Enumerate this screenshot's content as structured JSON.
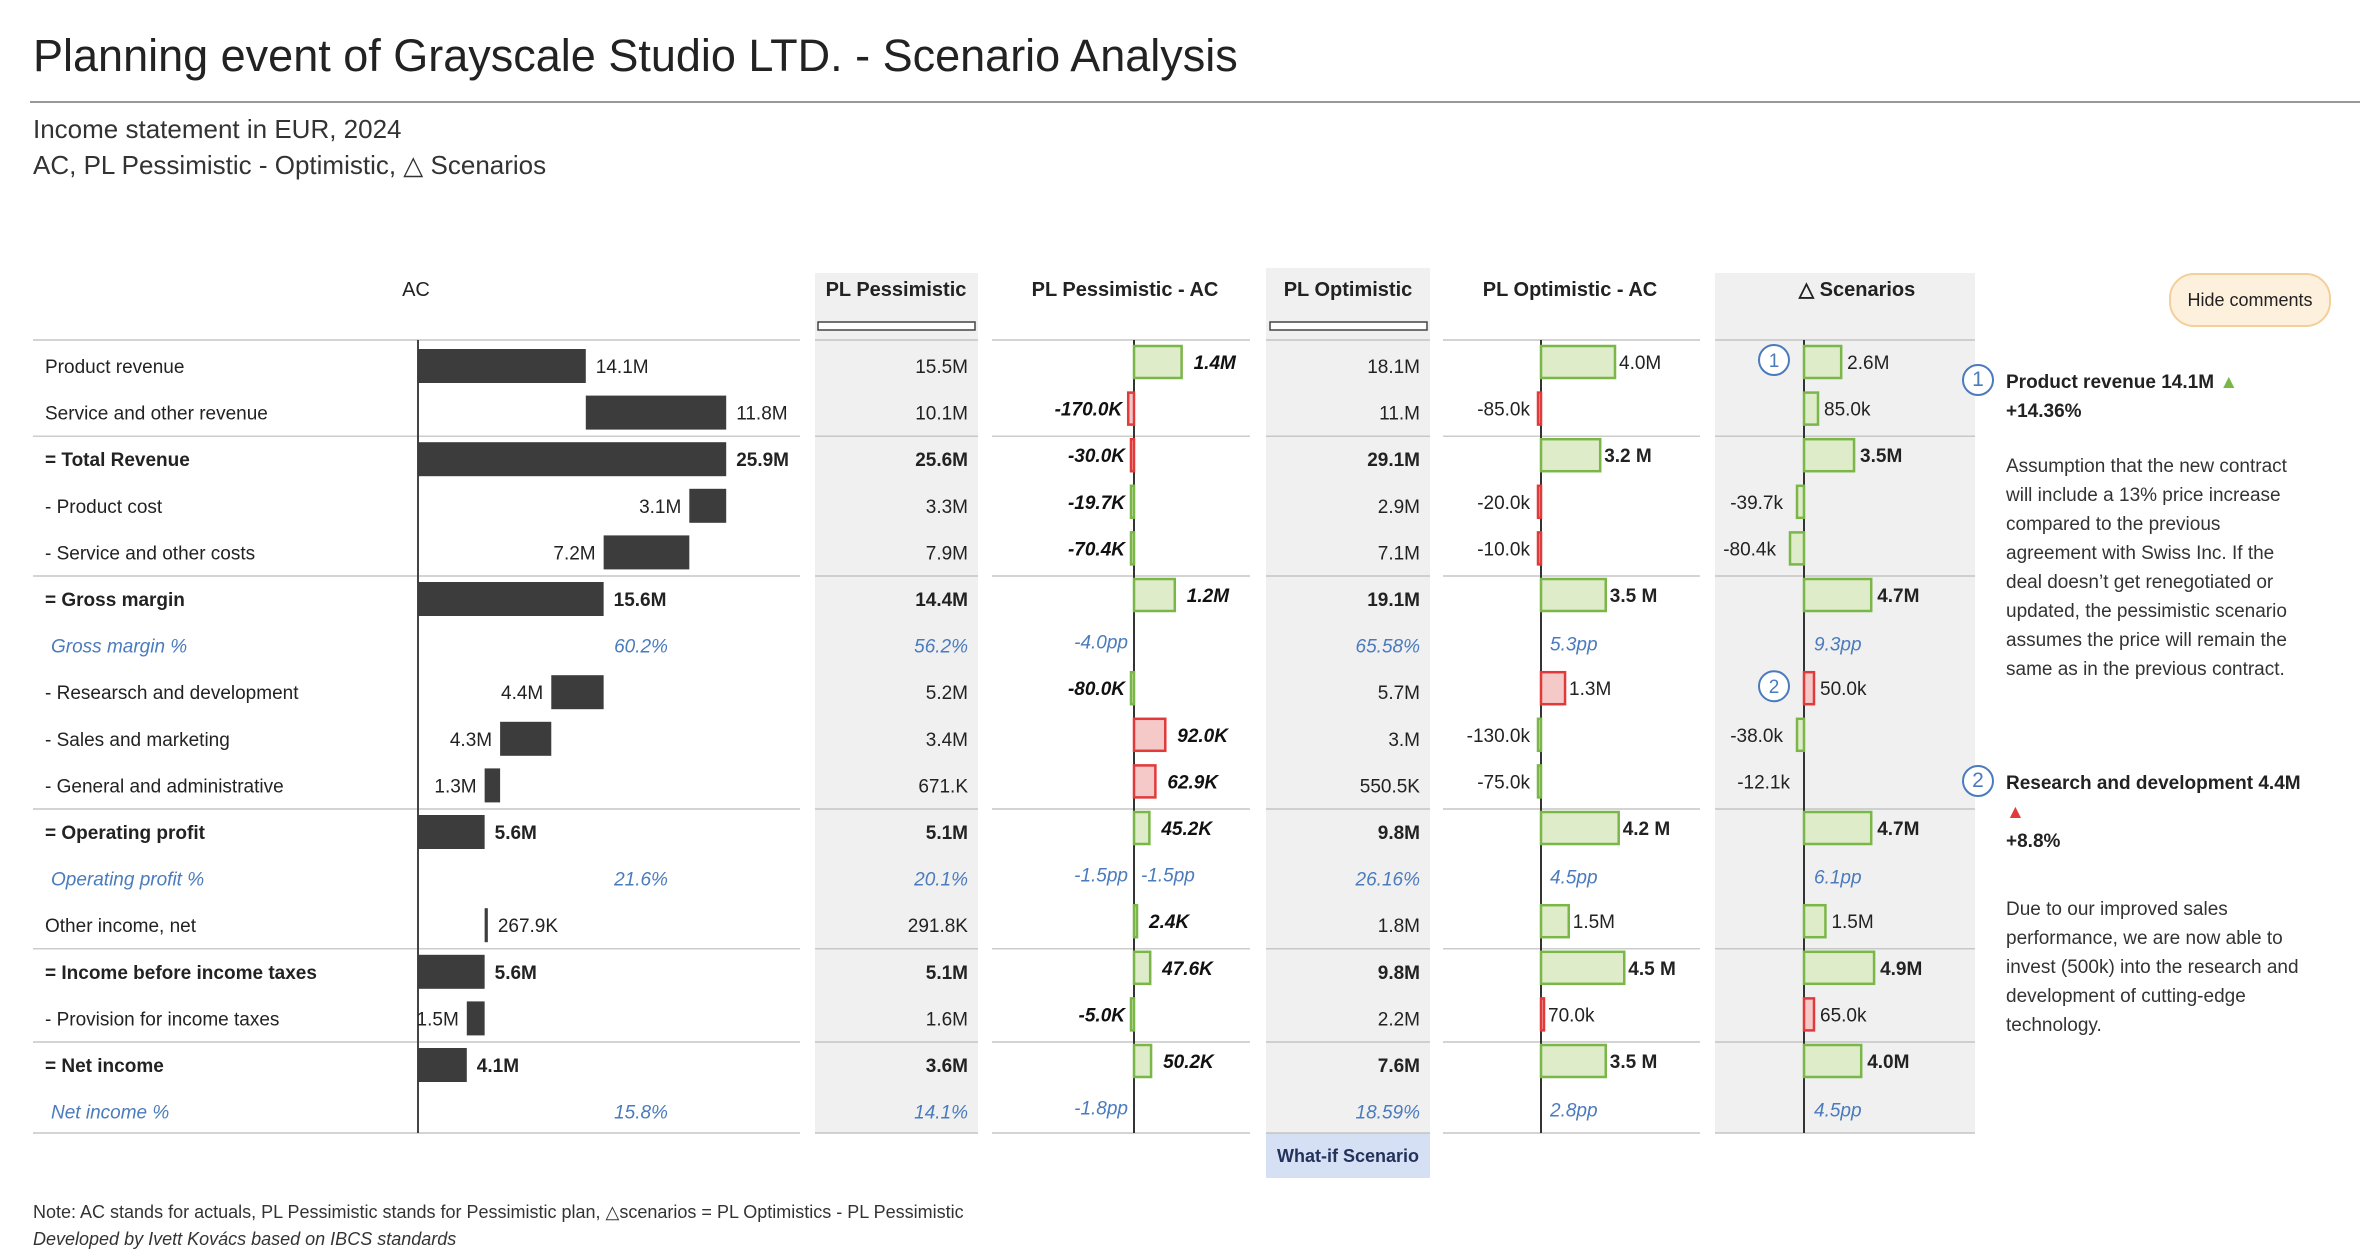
{
  "title": "Planning event of Grayscale Studio LTD. - Scenario Analysis",
  "subtitle1": "Income statement in EUR, 2024",
  "subtitle2": "AC, PL Pessimistic - Optimistic, △ Scenarios",
  "hide_comments_label": "Hide comments",
  "what_if_label": "What-if Scenario",
  "note": "Note: AC  stands for actuals, PL Pessimistic stands for Pessimistic plan, △scenarios = PL Optimistics - PL Pessimistic",
  "credit": "Developed by Ivett Kovács based on IBCS standards",
  "colors": {
    "actual_bar": "#3c3c3c",
    "positive": "#7ab648",
    "positive_fill": "#deecc9",
    "negative": "#e03a3a",
    "negative_fill": "#f6c9c9",
    "percent_text": "#4a7bbd",
    "plan_column_bg": "#f0f0f0",
    "what_if_bg": "#d6e0f5"
  },
  "comments": [
    {
      "marker": "1",
      "heading": "Product revenue  14.1M",
      "arrow": "▲",
      "arrow_color": "green",
      "change": "+14.36%",
      "text": "Assumption that the new contract will include a 13% price increase compared to the previous agreement with Swiss Inc. If the deal doesn’t get renegotiated or updated, the pessimistic scenario assumes the price will remain the same as in the previous contract."
    },
    {
      "marker": "2",
      "heading": "Research and development 4.4M",
      "arrow": "▲",
      "arrow_color": "red",
      "change": "+8.8%",
      "text": "Due to our improved sales performance, we are now able to invest (500k) into the research and development of cutting-edge technology."
    }
  ],
  "chart_data": {
    "type": "table",
    "title": "Planning event of Grayscale Studio LTD. - Scenario Analysis",
    "column_headers": [
      "AC",
      "PL Pessimistic",
      "PL Pessimistic - AC",
      "PL Optimistic",
      "PL Optimistic - AC",
      "△ Scenarios"
    ],
    "rows": [
      {
        "label": "Product revenue",
        "bold": false,
        "percent": false,
        "ac": 14.1,
        "ac_label": "14.1M",
        "ac_mode": "positive",
        "pess": "15.5M",
        "pa": 1.4,
        "pa_label": "1.4M",
        "opt": "18.1M",
        "oa": 4.0,
        "oa_label": "4.0M",
        "sc": 2.6,
        "sc_label": "2.6M",
        "marker": "1",
        "rule": false
      },
      {
        "label": "Service and other revenue",
        "bold": false,
        "percent": false,
        "ac": 11.8,
        "ac_label": "11.8M",
        "ac_mode": "positive",
        "pess": "10.1M",
        "pa": -0.17,
        "pa_label": "-170.0K",
        "opt": "11.M",
        "oa": -0.085,
        "oa_label": "-85.0k",
        "sc": 0.085,
        "sc_label": "85.0k",
        "rule": false
      },
      {
        "label": "= Total Revenue",
        "bold": true,
        "percent": false,
        "ac": 25.9,
        "ac_label": "25.9M",
        "ac_mode": "total",
        "pess": "25.6M",
        "pa": -0.03,
        "pa_label": "-30.0K",
        "opt": "29.1M",
        "oa": 3.2,
        "oa_label": "3.2 M",
        "sc": 3.5,
        "sc_label": "3.5M",
        "rule": true
      },
      {
        "label": "- Product cost",
        "bold": false,
        "percent": false,
        "ac": 3.1,
        "ac_label": "3.1M",
        "ac_mode": "negative",
        "pess": "3.3M",
        "pa": -0.0197,
        "pa_label": "-19.7K",
        "opt": "2.9M",
        "oa": -0.02,
        "oa_label": "-20.0k",
        "sc": -0.0397,
        "sc_label": "-39.7k",
        "rule": false
      },
      {
        "label": "- Service and other costs",
        "bold": false,
        "percent": false,
        "ac": 7.2,
        "ac_label": "7.2M",
        "ac_mode": "negative",
        "pess": "7.9M",
        "pa": -0.0704,
        "pa_label": "-70.4K",
        "opt": "7.1M",
        "oa": -0.01,
        "oa_label": "-10.0k",
        "sc": -0.0804,
        "sc_label": "-80.4k",
        "rule": false
      },
      {
        "label": "= Gross margin",
        "bold": true,
        "percent": false,
        "ac": 15.6,
        "ac_label": "15.6M",
        "ac_mode": "total",
        "pess": "14.4M",
        "pa": 1.2,
        "pa_label": "1.2M",
        "opt": "19.1M",
        "oa": 3.5,
        "oa_label": "3.5 M",
        "sc": 4.7,
        "sc_label": "4.7M",
        "rule": true
      },
      {
        "label": "Gross margin %",
        "bold": false,
        "percent": true,
        "ac": null,
        "ac_label": "60.2%",
        "ac_mode": "pct",
        "pess": "56.2%",
        "pa": null,
        "pa_label": "-4.0pp",
        "opt": "65.58%",
        "oa": null,
        "oa_label": "5.3pp",
        "sc": null,
        "sc_label": "9.3pp",
        "rule": false
      },
      {
        "label": "- Researsch and development",
        "bold": false,
        "percent": false,
        "ac": 4.4,
        "ac_label": "4.4M",
        "ac_mode": "negative",
        "pess": "5.2M",
        "pa": -0.08,
        "pa_label": "-80.0K",
        "opt": "5.7M",
        "oa": 1.3,
        "oa_label": "1.3M",
        "oa_bad": true,
        "sc": 0.05,
        "sc_label": "50.0k",
        "sc_bad": true,
        "marker": "2",
        "rule": false
      },
      {
        "label": "- Sales and marketing",
        "bold": false,
        "percent": false,
        "ac": 4.3,
        "ac_label": "4.3M",
        "ac_mode": "negative",
        "pess": "3.4M",
        "pa": 0.92,
        "pa_label": "92.0K",
        "pa_bad": true,
        "opt": "3.M",
        "oa": -0.13,
        "oa_label": "-130.0k",
        "oa_good": true,
        "sc": -0.038,
        "sc_label": "-38.0k",
        "rule": false
      },
      {
        "label": "- General and administrative",
        "bold": false,
        "percent": false,
        "ac": 1.3,
        "ac_label": "1.3M",
        "ac_mode": "negative",
        "pess": "671.K",
        "pa": 0.629,
        "pa_label": "62.9K",
        "pa_bad": true,
        "opt": "550.5K",
        "oa": -0.075,
        "oa_label": "-75.0k",
        "oa_good": true,
        "sc": -0.0121,
        "sc_label": "-12.1k",
        "rule": false
      },
      {
        "label": "= Operating profit",
        "bold": true,
        "percent": false,
        "ac": 5.6,
        "ac_label": "5.6M",
        "ac_mode": "total",
        "pess": "5.1M",
        "pa": 0.452,
        "pa_label": "45.2K",
        "opt": "9.8M",
        "oa": 4.2,
        "oa_label": "4.2 M",
        "sc": 4.7,
        "sc_label": "4.7M",
        "rule": true
      },
      {
        "label": "Operating profit %",
        "bold": false,
        "percent": true,
        "ac": null,
        "ac_label": "21.6%",
        "ac_mode": "pct",
        "pess": "20.1%",
        "pa": null,
        "pa_label": "-1.5pp",
        "pa_dup": "-1.5pp",
        "opt": "26.16%",
        "oa": null,
        "oa_label": "4.5pp",
        "sc": null,
        "sc_label": "6.1pp",
        "rule": false
      },
      {
        "label": "Other income, net",
        "bold": false,
        "percent": false,
        "ac": 0.2679,
        "ac_label": "267.9K",
        "ac_mode": "positive",
        "pess": "291.8K",
        "pa": 0.024,
        "pa_label": "2.4K",
        "opt": "1.8M",
        "oa": 1.5,
        "oa_label": "1.5M",
        "sc": 1.5,
        "sc_label": "1.5M",
        "rule": false
      },
      {
        "label": "= Income before income taxes",
        "bold": true,
        "percent": false,
        "ac": 5.6,
        "ac_label": "5.6M",
        "ac_mode": "total",
        "pess": "5.1M",
        "pa": 0.476,
        "pa_label": "47.6K",
        "opt": "9.8M",
        "oa": 4.5,
        "oa_label": "4.5 M",
        "sc": 4.9,
        "sc_label": "4.9M",
        "rule": true
      },
      {
        "label": "- Provision for income taxes",
        "bold": false,
        "percent": false,
        "ac": 1.5,
        "ac_label": "1.5M",
        "ac_mode": "negative",
        "pess": "1.6M",
        "pa": -0.05,
        "pa_label": "-5.0K",
        "opt": "2.2M",
        "oa": 0.07,
        "oa_label": "70.0k",
        "oa_bad": true,
        "sc": 0.065,
        "sc_label": "65.0k",
        "sc_bad": true,
        "rule": false
      },
      {
        "label": "= Net income",
        "bold": true,
        "percent": false,
        "ac": 4.1,
        "ac_label": "4.1M",
        "ac_mode": "total",
        "pess": "3.6M",
        "pa": 0.502,
        "pa_label": "50.2K",
        "opt": "7.6M",
        "oa": 3.5,
        "oa_label": "3.5 M",
        "sc": 4.0,
        "sc_label": "4.0M",
        "rule": true
      },
      {
        "label": "Net income %",
        "bold": false,
        "percent": true,
        "ac": null,
        "ac_label": "15.8%",
        "ac_mode": "pct",
        "pess": "14.1%",
        "pa": null,
        "pa_label": "-1.8pp",
        "opt": "18.59%",
        "oa": null,
        "oa_label": "2.8pp",
        "sc": null,
        "sc_label": "4.5pp",
        "rule": false
      }
    ]
  }
}
